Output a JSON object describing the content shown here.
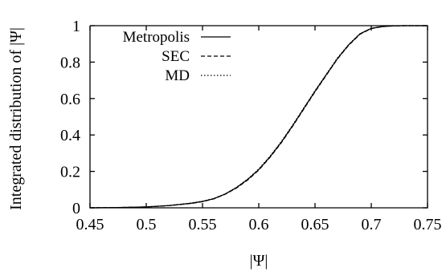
{
  "chart_data": {
    "type": "line",
    "title": "",
    "xlabel": "|Ψ|",
    "ylabel": "Integrated distribution of |Ψ|",
    "xlim": [
      0.45,
      0.75
    ],
    "ylim": [
      0,
      1
    ],
    "xticks": [
      "0.45",
      "0.5",
      "0.55",
      "0.6",
      "0.65",
      "0.7",
      "0.75"
    ],
    "yticks": [
      "0",
      "0.2",
      "0.4",
      "0.6",
      "0.8",
      "1"
    ],
    "grid": false,
    "legend_position": "top-left",
    "series": [
      {
        "name": "Metropolis",
        "style": "solid",
        "color": "#000000",
        "x": [
          0.45,
          0.48,
          0.5,
          0.52,
          0.54,
          0.55,
          0.56,
          0.57,
          0.58,
          0.59,
          0.6,
          0.61,
          0.62,
          0.63,
          0.64,
          0.65,
          0.66,
          0.67,
          0.68,
          0.69,
          0.7,
          0.71,
          0.72,
          0.73,
          0.74,
          0.75
        ],
        "y": [
          0.0,
          0.002,
          0.005,
          0.012,
          0.025,
          0.035,
          0.05,
          0.075,
          0.11,
          0.155,
          0.21,
          0.28,
          0.36,
          0.45,
          0.545,
          0.64,
          0.73,
          0.82,
          0.895,
          0.955,
          0.985,
          0.995,
          0.999,
          1.0,
          1.0,
          1.0
        ]
      },
      {
        "name": "SEC",
        "style": "dashed",
        "color": "#000000",
        "x": [
          0.45,
          0.48,
          0.5,
          0.52,
          0.54,
          0.55,
          0.56,
          0.57,
          0.58,
          0.59,
          0.6,
          0.61,
          0.62,
          0.63,
          0.64,
          0.65,
          0.66,
          0.67,
          0.68,
          0.69,
          0.7,
          0.71,
          0.72,
          0.73,
          0.74,
          0.75
        ],
        "y": [
          0.0,
          0.002,
          0.005,
          0.012,
          0.024,
          0.034,
          0.049,
          0.074,
          0.108,
          0.152,
          0.207,
          0.277,
          0.357,
          0.447,
          0.542,
          0.637,
          0.728,
          0.818,
          0.893,
          0.953,
          0.984,
          0.995,
          0.999,
          1.0,
          1.0,
          1.0
        ]
      },
      {
        "name": "MD",
        "style": "dotted",
        "color": "#000000",
        "x": [
          0.45,
          0.48,
          0.5,
          0.52,
          0.54,
          0.55,
          0.56,
          0.57,
          0.58,
          0.59,
          0.6,
          0.61,
          0.62,
          0.63,
          0.64,
          0.65,
          0.66,
          0.67,
          0.68,
          0.69,
          0.7,
          0.71,
          0.72,
          0.73,
          0.74,
          0.75
        ],
        "y": [
          0.0,
          0.002,
          0.005,
          0.013,
          0.026,
          0.036,
          0.051,
          0.076,
          0.112,
          0.157,
          0.213,
          0.283,
          0.363,
          0.453,
          0.548,
          0.643,
          0.733,
          0.823,
          0.897,
          0.956,
          0.986,
          0.996,
          0.999,
          1.0,
          1.0,
          1.0
        ]
      }
    ]
  }
}
